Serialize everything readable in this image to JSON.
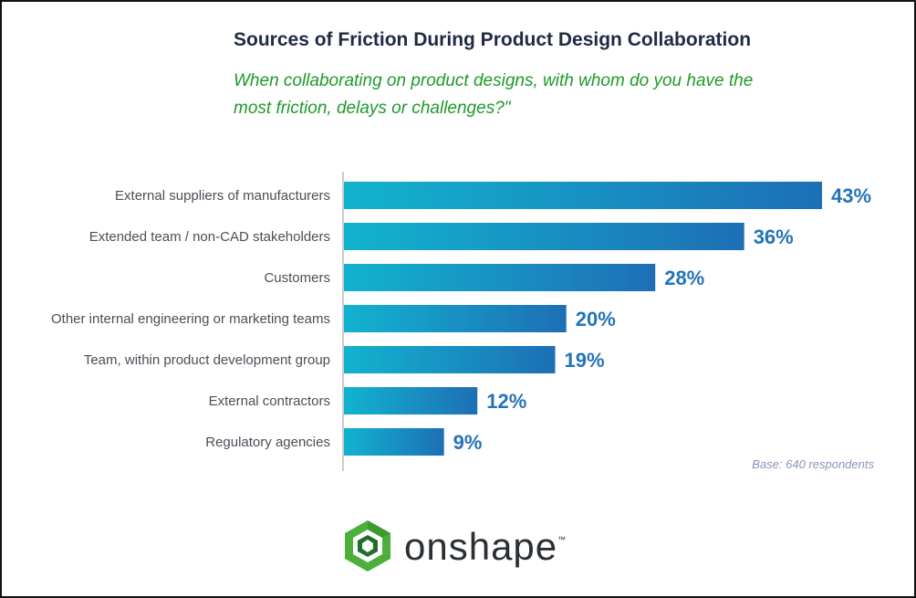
{
  "title": "Sources of Friction During Product Design Collaboration",
  "subtitle": "When collaborating on product designs, with whom do you have the most friction, delays or challenges?\"",
  "base_note": "Base: 640 respondents",
  "brand": {
    "name": "onshape",
    "trademark": "™",
    "icon": "onshape-hexagon-logo",
    "colors": {
      "logo_green": "#4caf3c",
      "logo_dark": "#1f6e2a",
      "bar_start": "#12b3cf",
      "bar_end": "#1d6fb5",
      "value_label": "#2473b8"
    }
  },
  "chart_data": {
    "type": "bar",
    "orientation": "horizontal",
    "categories": [
      "External suppliers of manufacturers",
      "Extended team / non-CAD stakeholders",
      "Customers",
      "Other internal engineering or marketing teams",
      "Team, within product development group",
      "External contractors",
      "Regulatory agencies"
    ],
    "values": [
      43,
      36,
      28,
      20,
      19,
      12,
      9
    ],
    "value_labels": [
      "43%",
      "36%",
      "28%",
      "20%",
      "19%",
      "12%",
      "9%"
    ],
    "unit": "%",
    "xlim": [
      0,
      43
    ],
    "grid": false,
    "legend": "none"
  }
}
